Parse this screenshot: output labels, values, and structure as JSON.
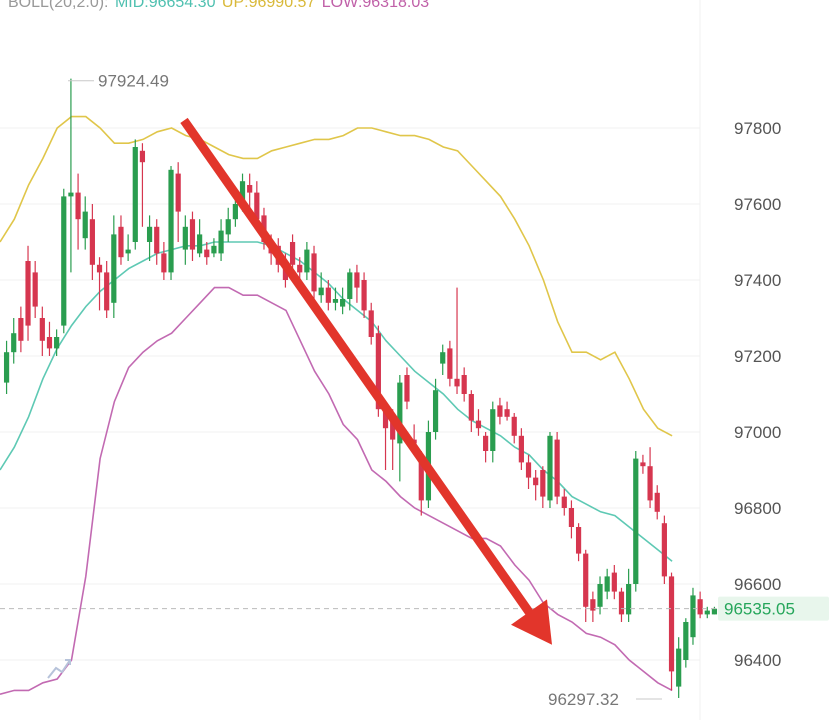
{
  "legend": {
    "prefix": "BOLL(20,2.0):",
    "mid": "MID:96654.30",
    "up": "UP:96990.57",
    "low": "LOW:96318.03"
  },
  "colors": {
    "up_candle": "#2a9d4f",
    "down_candle": "#d6364f",
    "mid_line": "#5ec9b4",
    "up_line": "#e0c64a",
    "low_line": "#c26ab2",
    "arrow": "#e2352b",
    "grid": "#f0f0f0",
    "price_tag_bg": "#e8f6ec",
    "price_tag_text": "#26a65b",
    "legend_prefix": "#999999",
    "legend_mid": "#4fc0b0",
    "legend_up": "#d9b93a",
    "legend_low": "#c060a8"
  },
  "annotations": {
    "high_label": "97924.49",
    "low_label": "96297.32",
    "current_price": "96535.05"
  },
  "icons": {
    "watermark": "chart-logo-icon"
  },
  "chart_data": {
    "type": "candlestick",
    "title": "",
    "ylim": [
      96300,
      97940
    ],
    "y_ticks": [
      97800,
      97600,
      97400,
      97200,
      97000,
      96800,
      96600,
      96400
    ],
    "high": 97924.49,
    "low": 96297.32,
    "current_price": 96535.05,
    "trend_arrow": {
      "from_price": 97820,
      "to_price": 96440,
      "direction": "down"
    },
    "candles": [
      [
        97130,
        97210,
        97240,
        97100
      ],
      [
        97210,
        97260,
        97300,
        97180
      ],
      [
        97300,
        97240,
        97330,
        97210
      ],
      [
        97450,
        97280,
        97490,
        97240
      ],
      [
        97420,
        97330,
        97450,
        97300
      ],
      [
        97300,
        97240,
        97330,
        97200
      ],
      [
        97250,
        97220,
        97290,
        97200
      ],
      [
        97220,
        97250,
        97270,
        97200
      ],
      [
        97280,
        97620,
        97640,
        97260
      ],
      [
        97620,
        97630,
        97930,
        97420
      ],
      [
        97630,
        97560,
        97680,
        97480
      ],
      [
        97510,
        97580,
        97620,
        97480
      ],
      [
        97560,
        97440,
        97600,
        97400
      ],
      [
        97440,
        97420,
        97460,
        97320
      ],
      [
        97420,
        97320,
        97450,
        97300
      ],
      [
        97340,
        97520,
        97570,
        97300
      ],
      [
        97540,
        97460,
        97570,
        97440
      ],
      [
        97470,
        97480,
        97520,
        97450
      ],
      [
        97500,
        97750,
        97770,
        97480
      ],
      [
        97740,
        97710,
        97760,
        97540
      ],
      [
        97500,
        97540,
        97570,
        97450
      ],
      [
        97540,
        97470,
        97560,
        97440
      ],
      [
        97470,
        97420,
        97500,
        97400
      ],
      [
        97420,
        97690,
        97700,
        97400
      ],
      [
        97680,
        97580,
        97710,
        97500
      ],
      [
        97480,
        97540,
        97570,
        97440
      ],
      [
        97560,
        97480,
        97580,
        97450
      ],
      [
        97470,
        97520,
        97560,
        97460
      ],
      [
        97480,
        97460,
        97500,
        97440
      ],
      [
        97470,
        97490,
        97510,
        97460
      ],
      [
        97470,
        97530,
        97560,
        97450
      ],
      [
        97520,
        97560,
        97590,
        97500
      ],
      [
        97560,
        97600,
        97620,
        97540
      ],
      [
        97600,
        97660,
        97680,
        97580
      ],
      [
        97650,
        97630,
        97680,
        97590
      ],
      [
        97630,
        97560,
        97660,
        97540
      ],
      [
        97570,
        97500,
        97590,
        97480
      ],
      [
        97500,
        97470,
        97520,
        97440
      ],
      [
        97490,
        97440,
        97510,
        97420
      ],
      [
        97440,
        97400,
        97470,
        97380
      ],
      [
        97500,
        97440,
        97520,
        97420
      ],
      [
        97440,
        97420,
        97460,
        97380
      ],
      [
        97420,
        97480,
        97500,
        97400
      ],
      [
        97470,
        97370,
        97490,
        97340
      ],
      [
        97360,
        97380,
        97420,
        97340
      ],
      [
        97380,
        97340,
        97400,
        97320
      ],
      [
        97340,
        97350,
        97380,
        97320
      ],
      [
        97330,
        97350,
        97380,
        97310
      ],
      [
        97350,
        97420,
        97430,
        97320
      ],
      [
        97420,
        97380,
        97440,
        97340
      ],
      [
        97400,
        97320,
        97420,
        97300
      ],
      [
        97320,
        97250,
        97340,
        97230
      ],
      [
        97260,
        97060,
        97280,
        97040
      ],
      [
        97060,
        97010,
        97080,
        96900
      ],
      [
        97040,
        96980,
        97060,
        96900
      ],
      [
        96970,
        97130,
        97150,
        96870
      ],
      [
        97150,
        97080,
        97170,
        97060
      ],
      [
        96980,
        96970,
        97020,
        96950
      ],
      [
        96930,
        96820,
        96950,
        96780
      ],
      [
        96820,
        97000,
        97030,
        96800
      ],
      [
        97000,
        97110,
        97140,
        96980
      ],
      [
        97180,
        97210,
        97230,
        97150
      ],
      [
        97220,
        97140,
        97240,
        97120
      ],
      [
        97140,
        97120,
        97380,
        97100
      ],
      [
        97150,
        97100,
        97170,
        97080
      ],
      [
        97100,
        97030,
        97110,
        97000
      ],
      [
        97030,
        97010,
        97060,
        96990
      ],
      [
        96990,
        96950,
        97000,
        96920
      ],
      [
        96950,
        97060,
        97080,
        96920
      ],
      [
        97070,
        97040,
        97090,
        97020
      ],
      [
        97060,
        97040,
        97080,
        97030
      ],
      [
        97040,
        96990,
        97050,
        96970
      ],
      [
        96990,
        96920,
        97010,
        96900
      ],
      [
        96920,
        96880,
        96940,
        96850
      ],
      [
        96880,
        96860,
        96900,
        96820
      ],
      [
        96900,
        96830,
        96910,
        96800
      ],
      [
        96820,
        96990,
        97000,
        96800
      ],
      [
        96980,
        96830,
        97000,
        96810
      ],
      [
        96830,
        96800,
        96850,
        96780
      ],
      [
        96800,
        96750,
        96820,
        96720
      ],
      [
        96750,
        96680,
        96760,
        96660
      ],
      [
        96680,
        96540,
        96690,
        96500
      ],
      [
        96560,
        96530,
        96580,
        96500
      ],
      [
        96540,
        96600,
        96620,
        96520
      ],
      [
        96580,
        96620,
        96640,
        96560
      ],
      [
        96630,
        96580,
        96650,
        96560
      ],
      [
        96580,
        96520,
        96590,
        96500
      ],
      [
        96520,
        96600,
        96640,
        96500
      ],
      [
        96600,
        96930,
        96950,
        96580
      ],
      [
        96920,
        96910,
        96940,
        96890
      ],
      [
        96910,
        96820,
        96960,
        96800
      ],
      [
        96840,
        96790,
        96860,
        96770
      ],
      [
        96760,
        96620,
        96780,
        96600
      ],
      [
        96620,
        96370,
        96630,
        96320
      ],
      [
        96330,
        96430,
        96460,
        96300
      ],
      [
        96400,
        96500,
        96510,
        96380
      ],
      [
        96460,
        96570,
        96590,
        96440
      ],
      [
        96560,
        96520,
        96580,
        96510
      ],
      [
        96520,
        96530,
        96540,
        96510
      ],
      [
        96520,
        96535,
        96540,
        96520
      ]
    ],
    "boll_up": [
      97500,
      97560,
      97650,
      97720,
      97800,
      97830,
      97830,
      97800,
      97760,
      97760,
      97770,
      97790,
      97800,
      97780,
      97770,
      97750,
      97730,
      97720,
      97720,
      97740,
      97750,
      97760,
      97770,
      97770,
      97780,
      97800,
      97800,
      97790,
      97780,
      97780,
      97770,
      97750,
      97740,
      97700,
      97660,
      97620,
      97560,
      97490,
      97400,
      97290,
      97210,
      97210,
      97190,
      97210,
      97140,
      97060,
      97010,
      96990
    ],
    "boll_mid": [
      96900,
      96960,
      97040,
      97140,
      97220,
      97280,
      97330,
      97370,
      97400,
      97430,
      97450,
      97470,
      97480,
      97490,
      97490,
      97500,
      97500,
      97500,
      97500,
      97490,
      97470,
      97450,
      97420,
      97390,
      97350,
      97320,
      97290,
      97240,
      97200,
      97160,
      97130,
      97100,
      97060,
      97030,
      97010,
      96990,
      96960,
      96940,
      96900,
      96870,
      96830,
      96810,
      96790,
      96780,
      96750,
      96720,
      96690,
      96660
    ],
    "boll_low": [
      96310,
      96320,
      96320,
      96340,
      96350,
      96400,
      96620,
      96930,
      97080,
      97170,
      97210,
      97240,
      97260,
      97300,
      97340,
      97380,
      97380,
      97360,
      97360,
      97340,
      97320,
      97240,
      97160,
      97100,
      97020,
      96980,
      96900,
      96870,
      96830,
      96800,
      96780,
      96760,
      96740,
      96720,
      96720,
      96700,
      96650,
      96610,
      96550,
      96520,
      96500,
      96470,
      96460,
      96440,
      96400,
      96370,
      96340,
      96320
    ],
    "boll_x_step": 14.3
  }
}
